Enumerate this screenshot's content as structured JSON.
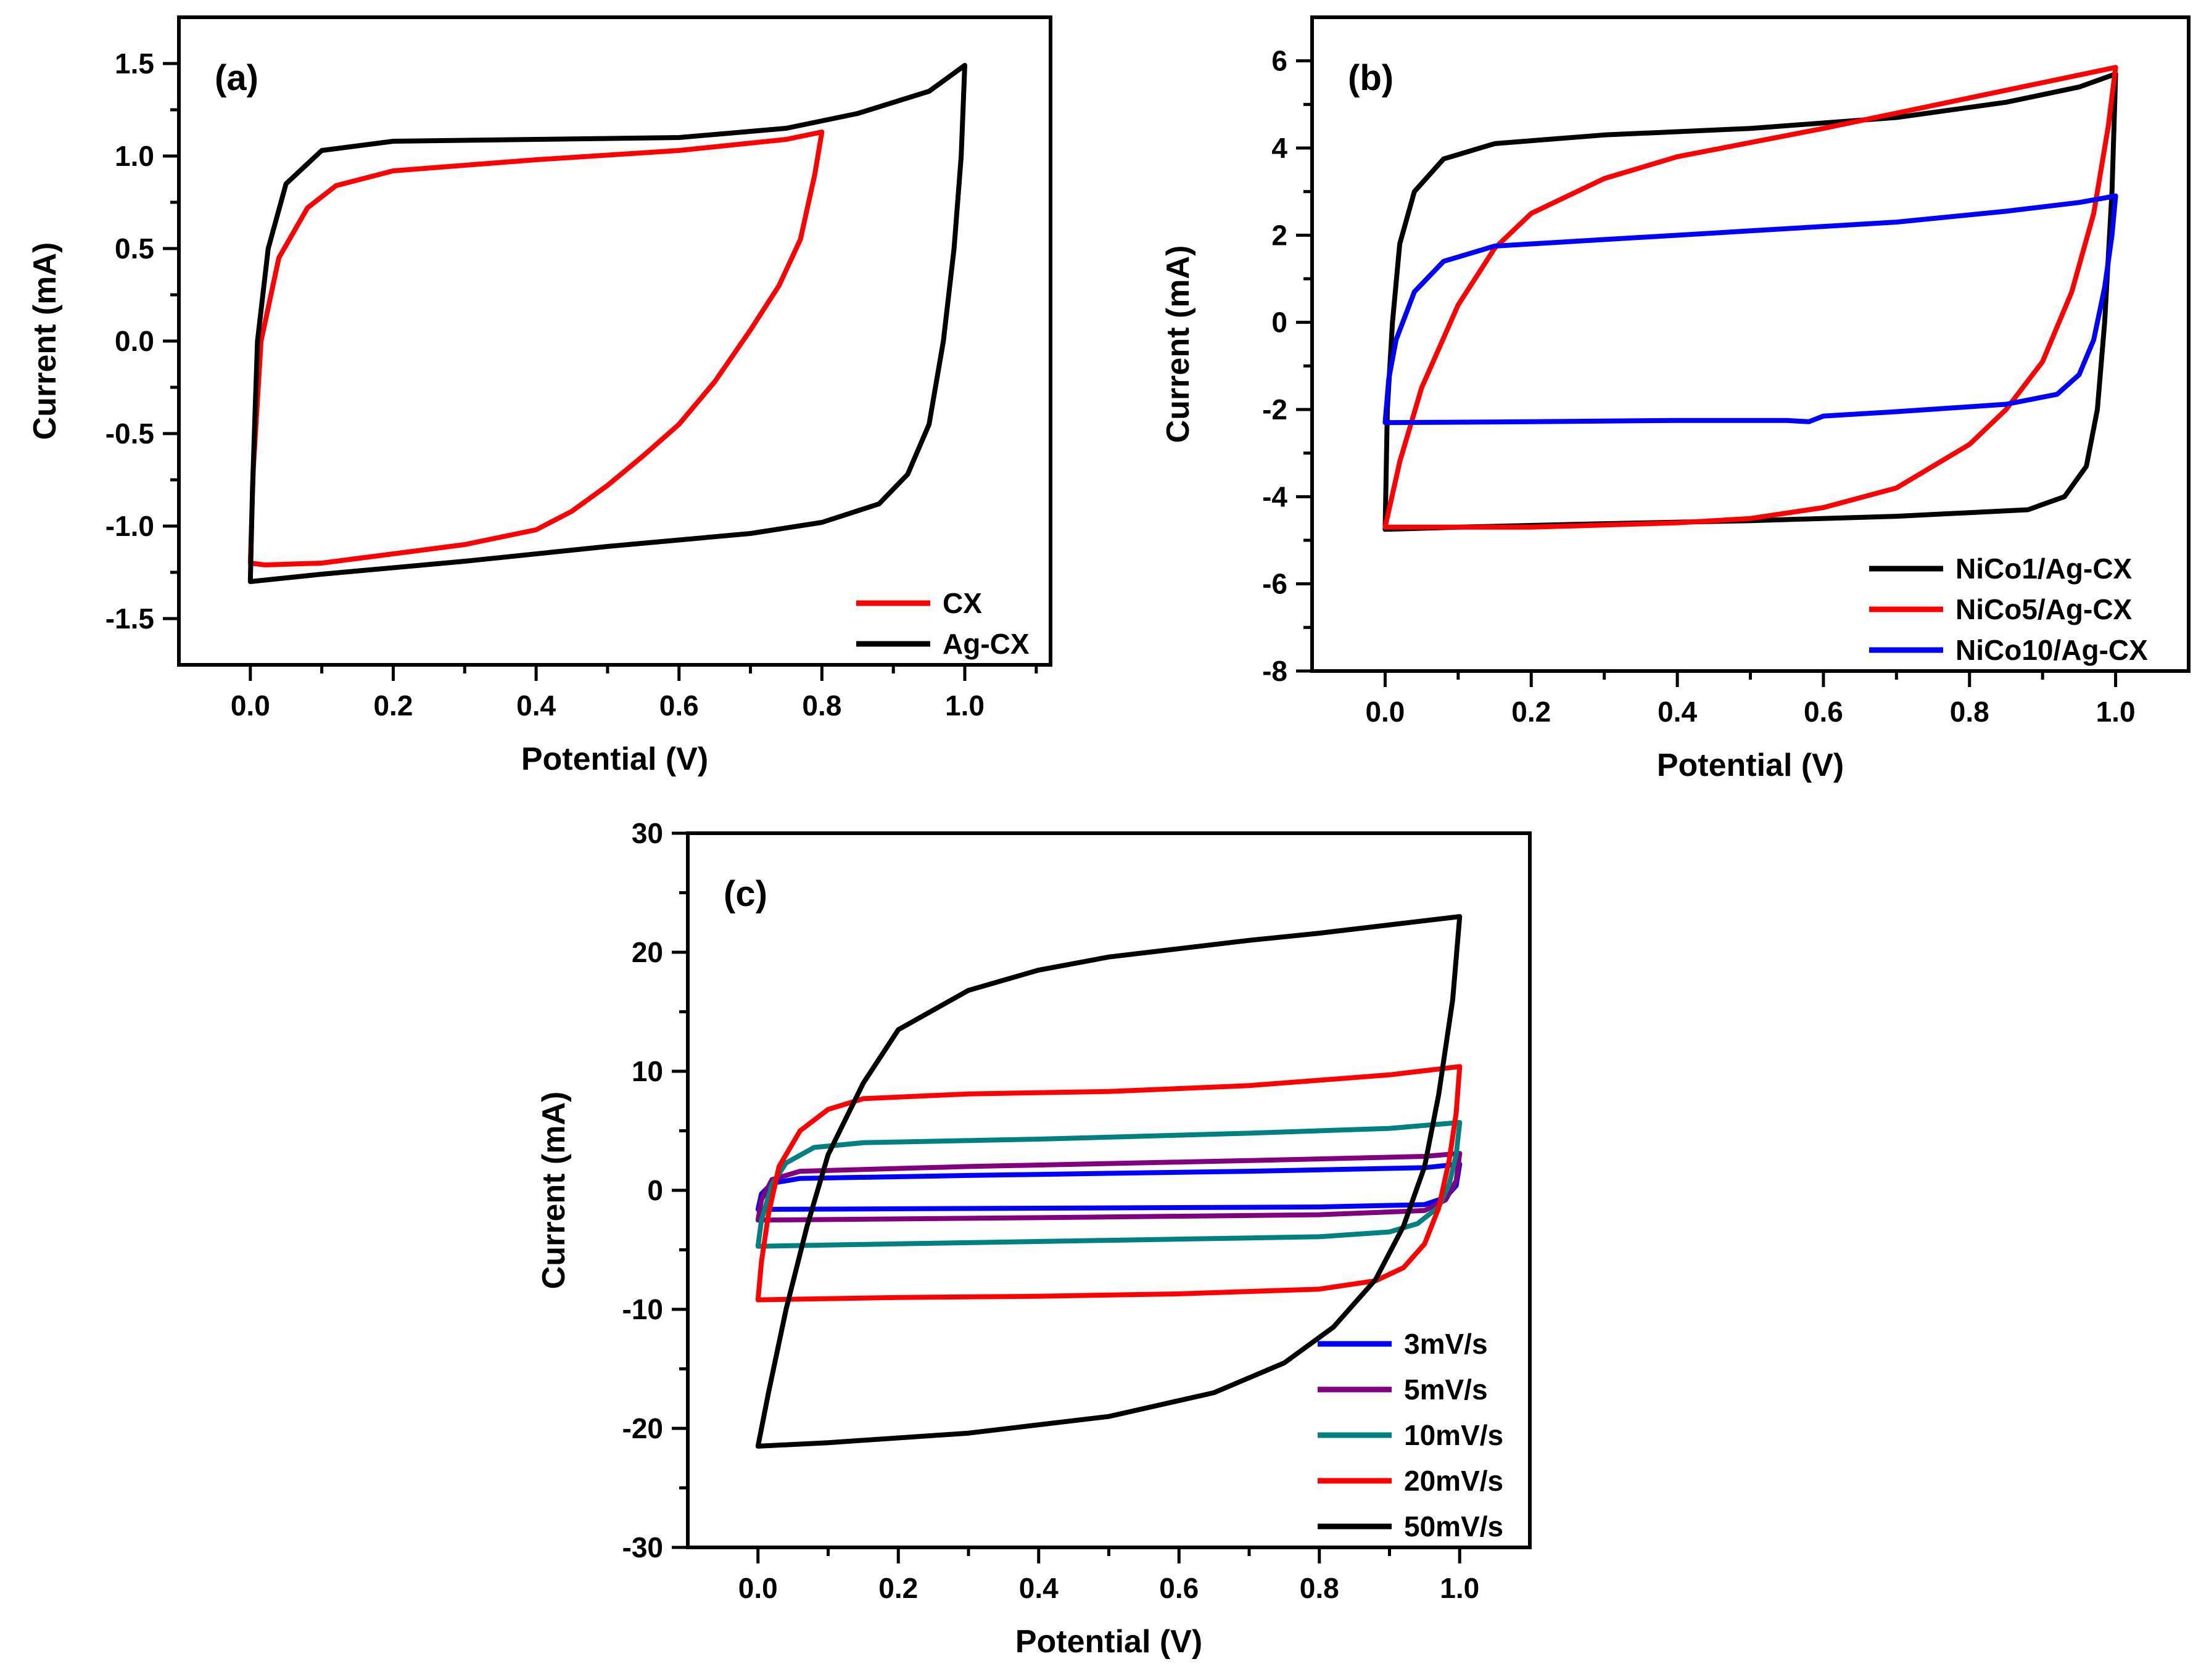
{
  "chart_data": [
    {
      "id": "a",
      "type": "line",
      "panel_label": "(a)",
      "xlabel": "Potential (V)",
      "ylabel": "Current (mA)",
      "xlim": [
        -0.1,
        1.12
      ],
      "ylim": [
        -1.75,
        1.75
      ],
      "xticks": [
        0.0,
        0.2,
        0.4,
        0.6,
        0.8,
        1.0
      ],
      "xtick_labels": [
        "0.0",
        "0.2",
        "0.4",
        "0.6",
        "0.8",
        "1.0"
      ],
      "yticks": [
        -1.5,
        -1.0,
        -0.5,
        0.0,
        0.5,
        1.0,
        1.5
      ],
      "ytick_labels": [
        "-1.5",
        "-1.0",
        "-0.5",
        "0.0",
        "0.5",
        "1.0",
        "1.5"
      ],
      "legend_position": "bottom-right",
      "series": [
        {
          "name": "CX",
          "color": "#ff0000",
          "points": [
            [
              0,
              -1.2
            ],
            [
              0.004,
              -0.7
            ],
            [
              0.015,
              0
            ],
            [
              0.04,
              0.45
            ],
            [
              0.08,
              0.72
            ],
            [
              0.12,
              0.84
            ],
            [
              0.2,
              0.92
            ],
            [
              0.4,
              0.98
            ],
            [
              0.6,
              1.03
            ],
            [
              0.75,
              1.09
            ],
            [
              0.8,
              1.13
            ],
            [
              0.79,
              0.9
            ],
            [
              0.77,
              0.55
            ],
            [
              0.74,
              0.3
            ],
            [
              0.7,
              0.06
            ],
            [
              0.65,
              -0.22
            ],
            [
              0.6,
              -0.45
            ],
            [
              0.55,
              -0.62
            ],
            [
              0.5,
              -0.78
            ],
            [
              0.45,
              -0.92
            ],
            [
              0.4,
              -1.02
            ],
            [
              0.3,
              -1.1
            ],
            [
              0.2,
              -1.15
            ],
            [
              0.1,
              -1.2
            ],
            [
              0.02,
              -1.21
            ],
            [
              0,
              -1.2
            ]
          ]
        },
        {
          "name": "Ag-CX",
          "color": "#000000",
          "points": [
            [
              0,
              -1.3
            ],
            [
              0.003,
              -0.8
            ],
            [
              0.01,
              0
            ],
            [
              0.025,
              0.5
            ],
            [
              0.05,
              0.85
            ],
            [
              0.1,
              1.03
            ],
            [
              0.2,
              1.08
            ],
            [
              0.4,
              1.09
            ],
            [
              0.6,
              1.1
            ],
            [
              0.75,
              1.15
            ],
            [
              0.85,
              1.23
            ],
            [
              0.95,
              1.35
            ],
            [
              1.0,
              1.49
            ],
            [
              0.995,
              1.0
            ],
            [
              0.985,
              0.5
            ],
            [
              0.97,
              0
            ],
            [
              0.95,
              -0.45
            ],
            [
              0.92,
              -0.72
            ],
            [
              0.88,
              -0.88
            ],
            [
              0.8,
              -0.98
            ],
            [
              0.7,
              -1.04
            ],
            [
              0.5,
              -1.11
            ],
            [
              0.3,
              -1.19
            ],
            [
              0.1,
              -1.26
            ],
            [
              0,
              -1.3
            ]
          ]
        }
      ]
    },
    {
      "id": "b",
      "type": "line",
      "panel_label": "(b)",
      "xlabel": "Potential (V)",
      "ylabel": "Current (mA)",
      "xlim": [
        -0.1,
        1.1
      ],
      "ylim": [
        -8,
        7
      ],
      "xticks": [
        0.0,
        0.2,
        0.4,
        0.6,
        0.8,
        1.0
      ],
      "xtick_labels": [
        "0.0",
        "0.2",
        "0.4",
        "0.6",
        "0.8",
        "1.0"
      ],
      "yticks": [
        -8,
        -6,
        -4,
        -2,
        0,
        2,
        4,
        6
      ],
      "ytick_labels": [
        "-8",
        "-6",
        "-4",
        "-2",
        "0",
        "2",
        "4",
        "6"
      ],
      "legend_position": "bottom-right",
      "series": [
        {
          "name": "NiCo1/Ag-CX",
          "color": "#000000",
          "points": [
            [
              0,
              -4.75
            ],
            [
              0.003,
              -2
            ],
            [
              0.01,
              0
            ],
            [
              0.02,
              1.8
            ],
            [
              0.04,
              3.0
            ],
            [
              0.08,
              3.75
            ],
            [
              0.15,
              4.1
            ],
            [
              0.3,
              4.3
            ],
            [
              0.5,
              4.45
            ],
            [
              0.7,
              4.7
            ],
            [
              0.85,
              5.05
            ],
            [
              0.95,
              5.4
            ],
            [
              1.0,
              5.7
            ],
            [
              0.995,
              3
            ],
            [
              0.985,
              0
            ],
            [
              0.975,
              -2
            ],
            [
              0.96,
              -3.3
            ],
            [
              0.93,
              -4.0
            ],
            [
              0.88,
              -4.3
            ],
            [
              0.7,
              -4.45
            ],
            [
              0.5,
              -4.55
            ],
            [
              0.3,
              -4.62
            ],
            [
              0.1,
              -4.7
            ],
            [
              0,
              -4.75
            ]
          ]
        },
        {
          "name": "NiCo5/Ag-CX",
          "color": "#ff0000",
          "points": [
            [
              0,
              -4.7
            ],
            [
              0.02,
              -3.2
            ],
            [
              0.05,
              -1.5
            ],
            [
              0.1,
              0.4
            ],
            [
              0.15,
              1.7
            ],
            [
              0.2,
              2.5
            ],
            [
              0.3,
              3.3
            ],
            [
              0.4,
              3.8
            ],
            [
              0.6,
              4.45
            ],
            [
              0.8,
              5.15
            ],
            [
              0.9,
              5.5
            ],
            [
              1.0,
              5.85
            ],
            [
              0.99,
              4.5
            ],
            [
              0.97,
              2.5
            ],
            [
              0.94,
              0.7
            ],
            [
              0.9,
              -0.9
            ],
            [
              0.85,
              -2.0
            ],
            [
              0.8,
              -2.8
            ],
            [
              0.7,
              -3.8
            ],
            [
              0.6,
              -4.25
            ],
            [
              0.5,
              -4.5
            ],
            [
              0.4,
              -4.6
            ],
            [
              0.2,
              -4.7
            ],
            [
              0,
              -4.7
            ]
          ]
        },
        {
          "name": "NiCo10/Ag-CX",
          "color": "#0000ff",
          "points": [
            [
              0,
              -2.3
            ],
            [
              0.005,
              -1.3
            ],
            [
              0.015,
              -0.4
            ],
            [
              0.04,
              0.7
            ],
            [
              0.08,
              1.4
            ],
            [
              0.15,
              1.75
            ],
            [
              0.3,
              1.9
            ],
            [
              0.5,
              2.1
            ],
            [
              0.7,
              2.3
            ],
            [
              0.85,
              2.55
            ],
            [
              0.95,
              2.75
            ],
            [
              1.0,
              2.9
            ],
            [
              0.995,
              2.0
            ],
            [
              0.985,
              0.8
            ],
            [
              0.97,
              -0.4
            ],
            [
              0.95,
              -1.2
            ],
            [
              0.92,
              -1.65
            ],
            [
              0.85,
              -1.88
            ],
            [
              0.7,
              -2.05
            ],
            [
              0.6,
              -2.15
            ],
            [
              0.58,
              -2.28
            ],
            [
              0.55,
              -2.25
            ],
            [
              0.4,
              -2.25
            ],
            [
              0.2,
              -2.28
            ],
            [
              0,
              -2.3
            ]
          ]
        }
      ]
    },
    {
      "id": "c",
      "type": "line",
      "panel_label": "(c)",
      "xlabel": "Potential (V)",
      "ylabel": "Current (mA)",
      "xlim": [
        -0.1,
        1.1
      ],
      "ylim": [
        -30,
        30
      ],
      "xticks": [
        0.0,
        0.2,
        0.4,
        0.6,
        0.8,
        1.0
      ],
      "xtick_labels": [
        "0.0",
        "0.2",
        "0.4",
        "0.6",
        "0.8",
        "1.0"
      ],
      "yticks": [
        -30,
        -20,
        -10,
        0,
        10,
        20,
        30
      ],
      "ytick_labels": [
        "-30",
        "-20",
        "-10",
        "0",
        "10",
        "20",
        "30"
      ],
      "legend_position": "bottom-right",
      "series": [
        {
          "name": "3mV/s",
          "color": "#0000ff",
          "points": [
            [
              0,
              -1.6
            ],
            [
              0.005,
              -0.3
            ],
            [
              0.02,
              0.6
            ],
            [
              0.06,
              1.0
            ],
            [
              0.3,
              1.25
            ],
            [
              0.7,
              1.6
            ],
            [
              0.95,
              1.9
            ],
            [
              1.0,
              2.2
            ],
            [
              0.995,
              0.4
            ],
            [
              0.98,
              -0.6
            ],
            [
              0.95,
              -1.2
            ],
            [
              0.8,
              -1.4
            ],
            [
              0.4,
              -1.5
            ],
            [
              0,
              -1.6
            ]
          ]
        },
        {
          "name": "5mV/s",
          "color": "#800080",
          "points": [
            [
              0,
              -2.5
            ],
            [
              0.005,
              -0.8
            ],
            [
              0.02,
              0.9
            ],
            [
              0.06,
              1.6
            ],
            [
              0.3,
              2.0
            ],
            [
              0.7,
              2.5
            ],
            [
              0.95,
              2.85
            ],
            [
              1.0,
              3.1
            ],
            [
              0.995,
              0.8
            ],
            [
              0.98,
              -0.8
            ],
            [
              0.95,
              -1.7
            ],
            [
              0.8,
              -2.05
            ],
            [
              0.4,
              -2.3
            ],
            [
              0,
              -2.5
            ]
          ]
        },
        {
          "name": "10mV/s",
          "color": "#008080",
          "points": [
            [
              0,
              -4.7
            ],
            [
              0.005,
              -2.5
            ],
            [
              0.02,
              0.5
            ],
            [
              0.04,
              2.3
            ],
            [
              0.08,
              3.6
            ],
            [
              0.15,
              4.0
            ],
            [
              0.4,
              4.3
            ],
            [
              0.7,
              4.8
            ],
            [
              0.9,
              5.2
            ],
            [
              1.0,
              5.7
            ],
            [
              0.995,
              3.0
            ],
            [
              0.985,
              0.5
            ],
            [
              0.97,
              -1.4
            ],
            [
              0.94,
              -2.8
            ],
            [
              0.9,
              -3.5
            ],
            [
              0.8,
              -3.9
            ],
            [
              0.5,
              -4.2
            ],
            [
              0.2,
              -4.5
            ],
            [
              0,
              -4.7
            ]
          ]
        },
        {
          "name": "20mV/s",
          "color": "#ff0000",
          "points": [
            [
              0,
              -9.2
            ],
            [
              0.005,
              -6
            ],
            [
              0.015,
              -2
            ],
            [
              0.03,
              2
            ],
            [
              0.06,
              5.0
            ],
            [
              0.1,
              6.8
            ],
            [
              0.15,
              7.7
            ],
            [
              0.3,
              8.1
            ],
            [
              0.5,
              8.3
            ],
            [
              0.7,
              8.8
            ],
            [
              0.9,
              9.7
            ],
            [
              1.0,
              10.4
            ],
            [
              0.995,
              6.5
            ],
            [
              0.985,
              2.5
            ],
            [
              0.97,
              -1.5
            ],
            [
              0.95,
              -4.5
            ],
            [
              0.92,
              -6.5
            ],
            [
              0.88,
              -7.6
            ],
            [
              0.8,
              -8.3
            ],
            [
              0.6,
              -8.7
            ],
            [
              0.4,
              -8.9
            ],
            [
              0.2,
              -9.0
            ],
            [
              0,
              -9.2
            ]
          ]
        },
        {
          "name": "50mV/s",
          "color": "#000000",
          "points": [
            [
              0,
              -21.5
            ],
            [
              0.015,
              -17
            ],
            [
              0.04,
              -10
            ],
            [
              0.07,
              -3
            ],
            [
              0.1,
              3
            ],
            [
              0.15,
              9
            ],
            [
              0.2,
              13.5
            ],
            [
              0.3,
              16.8
            ],
            [
              0.4,
              18.5
            ],
            [
              0.5,
              19.6
            ],
            [
              0.6,
              20.3
            ],
            [
              0.7,
              21.0
            ],
            [
              0.8,
              21.6
            ],
            [
              0.9,
              22.3
            ],
            [
              1.0,
              23.0
            ],
            [
              0.99,
              16
            ],
            [
              0.97,
              8
            ],
            [
              0.95,
              2
            ],
            [
              0.92,
              -3
            ],
            [
              0.88,
              -7.5
            ],
            [
              0.82,
              -11.5
            ],
            [
              0.75,
              -14.5
            ],
            [
              0.65,
              -17
            ],
            [
              0.5,
              -19
            ],
            [
              0.3,
              -20.4
            ],
            [
              0.1,
              -21.2
            ],
            [
              0,
              -21.5
            ]
          ]
        }
      ]
    }
  ]
}
